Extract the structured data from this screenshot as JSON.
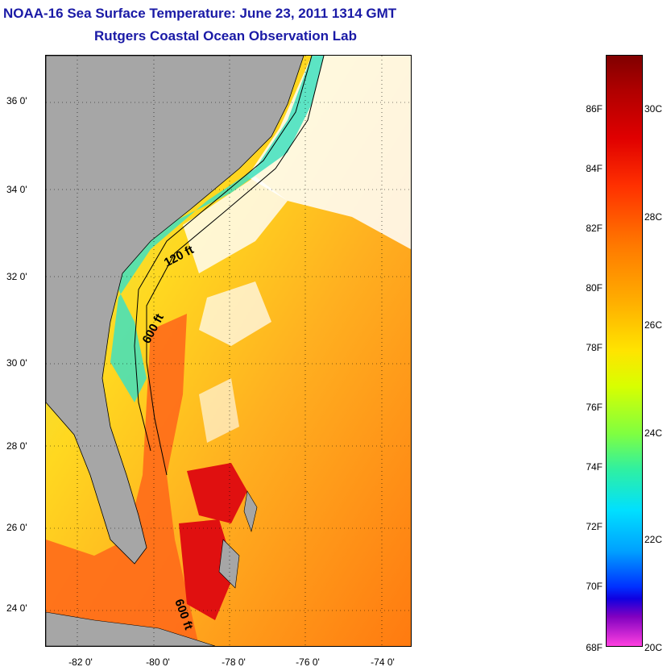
{
  "title": "NOAA-16 Sea Surface Temperature:  June 23, 2011 1314 GMT",
  "subtitle": "Rutgers Coastal Ocean Observation Lab",
  "axes": {
    "y_ticks": [
      "36 0'",
      "34 0'",
      "32 0'",
      "30 0'",
      "28 0'",
      "26 0'",
      "24 0'"
    ],
    "x_ticks": [
      "-82 0'",
      "-80 0'",
      "-78 0'",
      "-76 0'",
      "-74 0'"
    ]
  },
  "contour_labels": [
    "120 ft",
    "600 ft",
    "600 ft"
  ],
  "colorbar": {
    "fahrenheit_labels": [
      "86F",
      "84F",
      "82F",
      "80F",
      "78F",
      "76F",
      "74F",
      "72F",
      "70F",
      "68F"
    ],
    "celsius_labels": [
      "30C",
      "28C",
      "26C",
      "24C",
      "22C",
      "20C"
    ],
    "colors_top_to_bottom": [
      "#800000",
      "#e00000",
      "#ff7800",
      "#ffe400",
      "#80ff40",
      "#00e0ff",
      "#0030ff",
      "#8000c0",
      "#ff40e0"
    ]
  },
  "map_colors": {
    "land": "#a6a6a6",
    "warm_sst": "#ff6a1a",
    "mid_sst": "#ffd21a",
    "cool_sst": "#40e0b0",
    "cloud": "#ffffff"
  }
}
